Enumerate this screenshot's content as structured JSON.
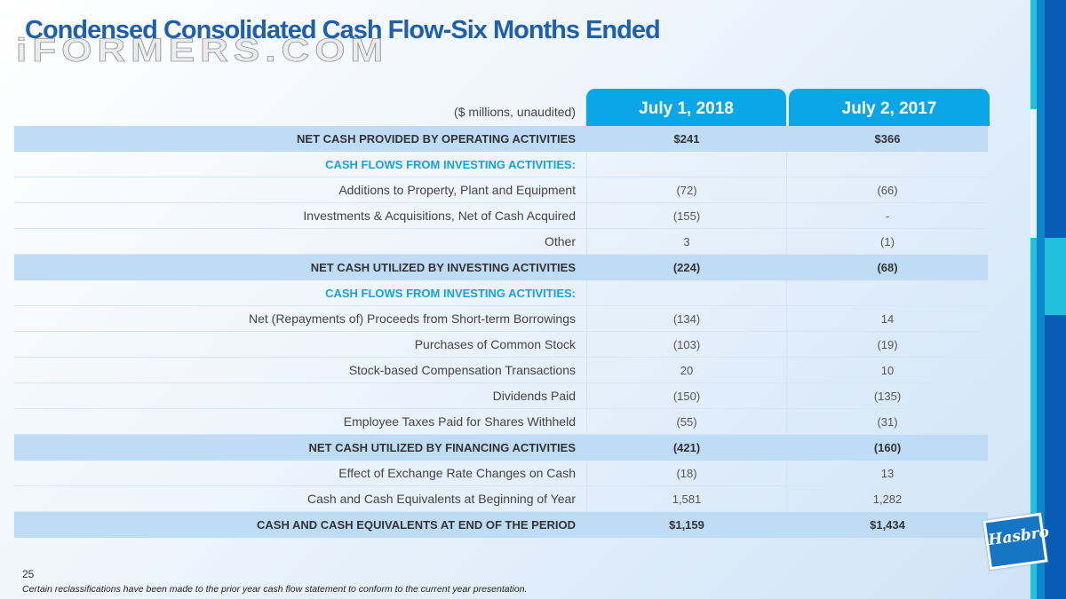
{
  "title": "Condensed Consolidated Cash Flow-Six Months Ended",
  "watermark": "iFORMERS.COM",
  "units": "($ millions, unaudited)",
  "columns": [
    "July 1, 2018",
    "July 2, 2017"
  ],
  "rows": [
    {
      "label": "NET CASH PROVIDED BY OPERATING ACTIVITIES",
      "v1": "$241",
      "v2": "$366",
      "type": "total"
    },
    {
      "label": "CASH FLOWS FROM INVESTING ACTIVITIES:",
      "v1": "",
      "v2": "",
      "type": "section"
    },
    {
      "label": "Additions to Property, Plant and Equipment",
      "v1": "(72)",
      "v2": "(66)",
      "type": "item"
    },
    {
      "label": "Investments & Acquisitions, Net of Cash Acquired",
      "v1": "(155)",
      "v2": "-",
      "type": "item"
    },
    {
      "label": "Other",
      "v1": "3",
      "v2": "(1)",
      "type": "item"
    },
    {
      "label": "NET CASH UTILIZED BY INVESTING ACTIVITIES",
      "v1": "(224)",
      "v2": "(68)",
      "type": "total"
    },
    {
      "label": "CASH FLOWS FROM INVESTING ACTIVITIES:",
      "v1": "",
      "v2": "",
      "type": "section"
    },
    {
      "label": "Net (Repayments of) Proceeds from Short-term Borrowings",
      "v1": "(134)",
      "v2": "14",
      "type": "item"
    },
    {
      "label": "Purchases of Common Stock",
      "v1": "(103)",
      "v2": "(19)",
      "type": "item"
    },
    {
      "label": "Stock-based Compensation Transactions",
      "v1": "20",
      "v2": "10",
      "type": "item"
    },
    {
      "label": "Dividends Paid",
      "v1": "(150)",
      "v2": "(135)",
      "type": "item"
    },
    {
      "label": "Employee Taxes Paid for Shares Withheld",
      "v1": "(55)",
      "v2": "(31)",
      "type": "item"
    },
    {
      "label": "NET CASH UTILIZED BY FINANCING ACTIVITIES",
      "v1": "(421)",
      "v2": "(160)",
      "type": "total"
    },
    {
      "label": "Effect of Exchange Rate Changes on Cash",
      "v1": "(18)",
      "v2": "13",
      "type": "item"
    },
    {
      "label": "Cash and Cash Equivalents at Beginning of Year",
      "v1": "1,581",
      "v2": "1,282",
      "type": "item"
    },
    {
      "label": "CASH AND CASH EQUIVALENTS AT END OF THE PERIOD",
      "v1": "$1,159",
      "v2": "$1,434",
      "type": "total"
    }
  ],
  "page_number": "25",
  "footnote": "Certain reclassifications have been made to the prior year cash flow statement to conform to the current year presentation.",
  "logo": "Hasbro",
  "colors": {
    "accent": "#0aa6e6",
    "title": "#1f5fb0",
    "highlight": "#bfdcf7",
    "band_dark": "#0a5bb5",
    "band_light": "#22c0dc"
  }
}
